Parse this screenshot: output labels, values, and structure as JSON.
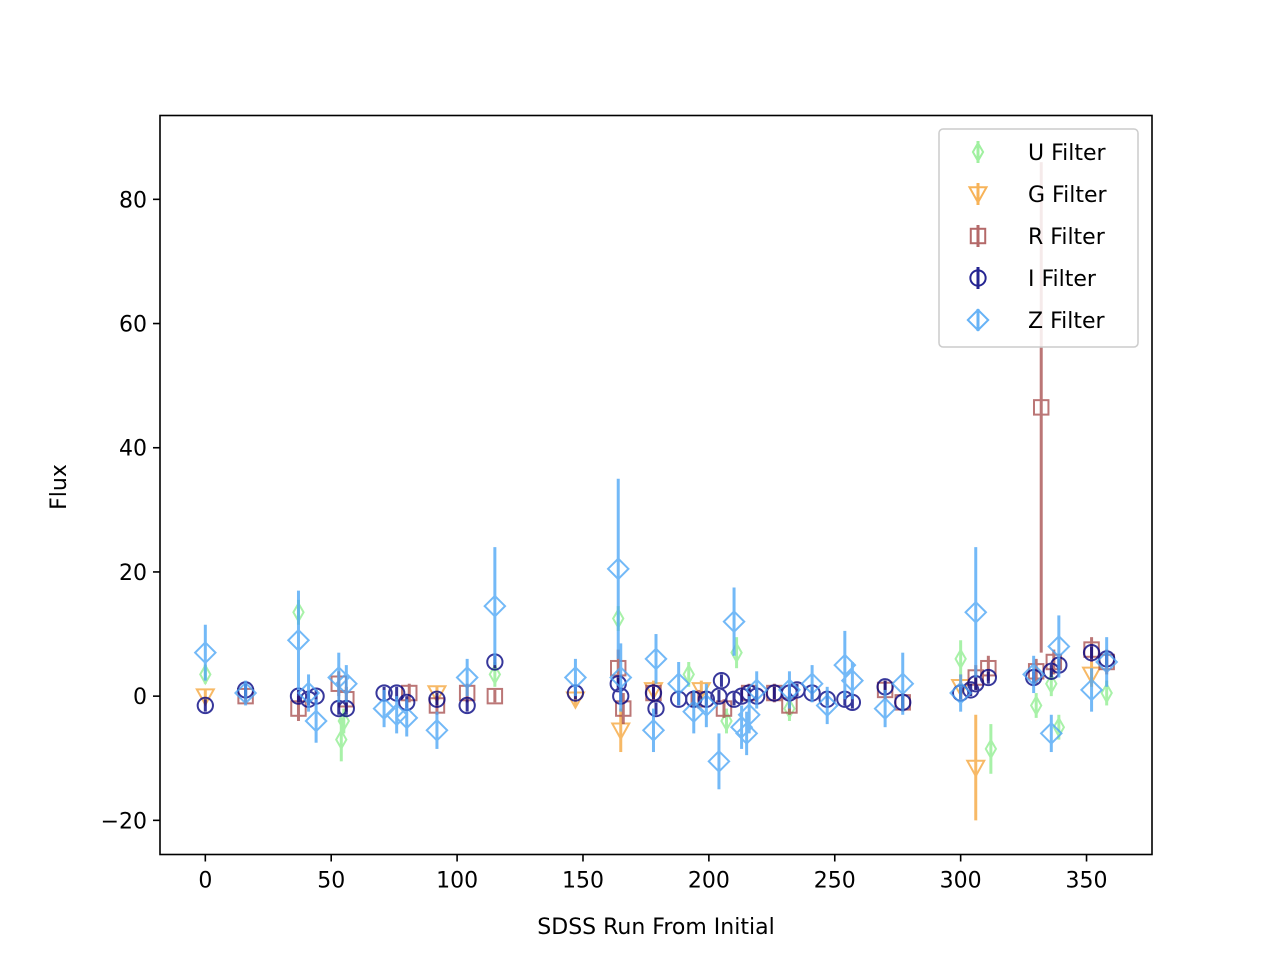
{
  "chart_data": {
    "type": "scatter",
    "title": "",
    "xlabel": "SDSS Run From Initial",
    "ylabel": "Flux",
    "xlim": [
      -18,
      376
    ],
    "ylim": [
      -25.5,
      93.5
    ],
    "xticks": [
      0,
      50,
      100,
      150,
      200,
      250,
      300,
      350
    ],
    "yticks": [
      -20,
      0,
      20,
      40,
      60,
      80
    ],
    "grid": false,
    "legend_position": "top-right",
    "series": [
      {
        "name": "U Filter",
        "marker": "thin-diamond",
        "color": "#90ee90",
        "points": [
          {
            "x": 0,
            "y": 3.5,
            "err": 1.5
          },
          {
            "x": 37,
            "y": 13.5,
            "err": 2.0
          },
          {
            "x": 54,
            "y": -7.0,
            "err": 3.5
          },
          {
            "x": 55,
            "y": -4.0,
            "err": 2.0
          },
          {
            "x": 115,
            "y": 3.5,
            "err": 2.0
          },
          {
            "x": 164,
            "y": 12.5,
            "err": 2.0
          },
          {
            "x": 192,
            "y": 3.5,
            "err": 2.0
          },
          {
            "x": 207,
            "y": -4.0,
            "err": 2.0
          },
          {
            "x": 211,
            "y": 7.0,
            "err": 2.5
          },
          {
            "x": 232,
            "y": -2.0,
            "err": 2.0
          },
          {
            "x": 300,
            "y": 6.0,
            "err": 3.0
          },
          {
            "x": 312,
            "y": -8.5,
            "err": 4.0
          },
          {
            "x": 330,
            "y": -1.5,
            "err": 2.0
          },
          {
            "x": 336,
            "y": 2.0,
            "err": 2.0
          },
          {
            "x": 339,
            "y": -5.0,
            "err": 2.0
          },
          {
            "x": 358,
            "y": 0.5,
            "err": 2.0
          }
        ]
      },
      {
        "name": "G Filter",
        "marker": "triangle-down",
        "color": "#f6a63c",
        "points": [
          {
            "x": 0,
            "y": 0.0,
            "err": 1.0
          },
          {
            "x": 92,
            "y": 0.5,
            "err": 1.0
          },
          {
            "x": 147,
            "y": -0.5,
            "err": 1.0
          },
          {
            "x": 165,
            "y": -5.5,
            "err": 3.5
          },
          {
            "x": 178,
            "y": 1.0,
            "err": 1.5
          },
          {
            "x": 197,
            "y": 1.0,
            "err": 1.5
          },
          {
            "x": 300,
            "y": 1.5,
            "err": 2.0
          },
          {
            "x": 306,
            "y": -11.5,
            "err": 8.5
          },
          {
            "x": 352,
            "y": 3.5,
            "err": 2.0
          }
        ]
      },
      {
        "name": "R Filter",
        "marker": "square",
        "color": "#a85050",
        "points": [
          {
            "x": 16,
            "y": 0.0,
            "err": 1.0
          },
          {
            "x": 37,
            "y": -2.0,
            "err": 2.0
          },
          {
            "x": 53,
            "y": 2.0,
            "err": 2.0
          },
          {
            "x": 56,
            "y": -0.5,
            "err": 2.0
          },
          {
            "x": 81,
            "y": 0.5,
            "err": 1.5
          },
          {
            "x": 92,
            "y": -1.5,
            "err": 1.5
          },
          {
            "x": 104,
            "y": 0.5,
            "err": 1.5
          },
          {
            "x": 115,
            "y": 0.0,
            "err": 1.0
          },
          {
            "x": 164,
            "y": 4.5,
            "err": 3.0
          },
          {
            "x": 166,
            "y": -2.0,
            "err": 2.5
          },
          {
            "x": 178,
            "y": 0.5,
            "err": 1.5
          },
          {
            "x": 196,
            "y": -0.5,
            "err": 1.5
          },
          {
            "x": 206,
            "y": -2.0,
            "err": 1.5
          },
          {
            "x": 216,
            "y": 0.5,
            "err": 1.5
          },
          {
            "x": 226,
            "y": 0.5,
            "err": 1.5
          },
          {
            "x": 232,
            "y": -1.5,
            "err": 1.5
          },
          {
            "x": 270,
            "y": 1.0,
            "err": 1.5
          },
          {
            "x": 277,
            "y": -1.0,
            "err": 1.5
          },
          {
            "x": 306,
            "y": 3.0,
            "err": 2.0
          },
          {
            "x": 311,
            "y": 4.5,
            "err": 2.0
          },
          {
            "x": 330,
            "y": 4.0,
            "err": 2.0
          },
          {
            "x": 332,
            "y": 46.5,
            "err": 39.5
          },
          {
            "x": 337,
            "y": 5.5,
            "err": 2.0
          },
          {
            "x": 352,
            "y": 7.5,
            "err": 2.0
          },
          {
            "x": 358,
            "y": 5.5,
            "err": 2.0
          }
        ]
      },
      {
        "name": "I Filter",
        "marker": "circle",
        "color": "#000080",
        "points": [
          {
            "x": 0,
            "y": -1.5,
            "err": 1.0
          },
          {
            "x": 16,
            "y": 1.0,
            "err": 1.0
          },
          {
            "x": 37,
            "y": 0.0,
            "err": 1.0
          },
          {
            "x": 41,
            "y": -0.5,
            "err": 1.0
          },
          {
            "x": 44,
            "y": 0.0,
            "err": 1.0
          },
          {
            "x": 53,
            "y": -2.0,
            "err": 1.0
          },
          {
            "x": 56,
            "y": -2.0,
            "err": 1.0
          },
          {
            "x": 71,
            "y": 0.5,
            "err": 1.0
          },
          {
            "x": 76,
            "y": 0.5,
            "err": 1.0
          },
          {
            "x": 80,
            "y": -1.0,
            "err": 1.0
          },
          {
            "x": 92,
            "y": -0.5,
            "err": 1.0
          },
          {
            "x": 104,
            "y": -1.5,
            "err": 1.0
          },
          {
            "x": 115,
            "y": 5.5,
            "err": 1.0
          },
          {
            "x": 147,
            "y": 0.5,
            "err": 1.0
          },
          {
            "x": 164,
            "y": 2.0,
            "err": 1.0
          },
          {
            "x": 165,
            "y": 0.0,
            "err": 1.0
          },
          {
            "x": 178,
            "y": 0.5,
            "err": 1.0
          },
          {
            "x": 179,
            "y": -2.0,
            "err": 1.0
          },
          {
            "x": 188,
            "y": -0.5,
            "err": 1.0
          },
          {
            "x": 194,
            "y": -0.5,
            "err": 1.0
          },
          {
            "x": 199,
            "y": -0.5,
            "err": 1.0
          },
          {
            "x": 204,
            "y": 0.0,
            "err": 1.0
          },
          {
            "x": 205,
            "y": 2.5,
            "err": 1.0
          },
          {
            "x": 210,
            "y": -0.5,
            "err": 1.0
          },
          {
            "x": 213,
            "y": 0.0,
            "err": 1.0
          },
          {
            "x": 216,
            "y": 0.5,
            "err": 1.0
          },
          {
            "x": 219,
            "y": 0.0,
            "err": 1.0
          },
          {
            "x": 226,
            "y": 0.5,
            "err": 1.0
          },
          {
            "x": 232,
            "y": 0.5,
            "err": 1.0
          },
          {
            "x": 235,
            "y": 1.0,
            "err": 1.0
          },
          {
            "x": 241,
            "y": 0.5,
            "err": 1.0
          },
          {
            "x": 247,
            "y": -0.5,
            "err": 1.0
          },
          {
            "x": 254,
            "y": -0.5,
            "err": 1.0
          },
          {
            "x": 257,
            "y": -1.0,
            "err": 1.0
          },
          {
            "x": 270,
            "y": 1.5,
            "err": 1.0
          },
          {
            "x": 277,
            "y": -1.0,
            "err": 1.0
          },
          {
            "x": 300,
            "y": 0.5,
            "err": 1.0
          },
          {
            "x": 304,
            "y": 1.0,
            "err": 1.0
          },
          {
            "x": 306,
            "y": 2.0,
            "err": 1.0
          },
          {
            "x": 311,
            "y": 3.0,
            "err": 1.0
          },
          {
            "x": 329,
            "y": 3.0,
            "err": 1.0
          },
          {
            "x": 336,
            "y": 4.0,
            "err": 1.0
          },
          {
            "x": 339,
            "y": 5.0,
            "err": 1.0
          },
          {
            "x": 352,
            "y": 7.0,
            "err": 1.0
          },
          {
            "x": 358,
            "y": 6.0,
            "err": 1.0
          }
        ]
      },
      {
        "name": "Z Filter",
        "marker": "diamond",
        "color": "#4da6f5",
        "points": [
          {
            "x": 0,
            "y": 7.0,
            "err": 4.5
          },
          {
            "x": 16,
            "y": 0.5,
            "err": 2.0
          },
          {
            "x": 37,
            "y": 9.0,
            "err": 8.0
          },
          {
            "x": 41,
            "y": 0.5,
            "err": 3.0
          },
          {
            "x": 44,
            "y": -4.0,
            "err": 3.5
          },
          {
            "x": 53,
            "y": 3.0,
            "err": 4.0
          },
          {
            "x": 56,
            "y": 2.0,
            "err": 3.0
          },
          {
            "x": 71,
            "y": -2.0,
            "err": 3.0
          },
          {
            "x": 76,
            "y": -3.0,
            "err": 3.0
          },
          {
            "x": 80,
            "y": -3.5,
            "err": 3.0
          },
          {
            "x": 92,
            "y": -5.5,
            "err": 3.0
          },
          {
            "x": 104,
            "y": 3.0,
            "err": 3.0
          },
          {
            "x": 115,
            "y": 14.5,
            "err": 9.5
          },
          {
            "x": 147,
            "y": 3.0,
            "err": 3.0
          },
          {
            "x": 164,
            "y": 20.5,
            "err": 14.5
          },
          {
            "x": 165,
            "y": 3.0,
            "err": 5.5
          },
          {
            "x": 178,
            "y": -5.5,
            "err": 3.5
          },
          {
            "x": 179,
            "y": 6.0,
            "err": 4.0
          },
          {
            "x": 188,
            "y": 2.0,
            "err": 3.5
          },
          {
            "x": 194,
            "y": -2.5,
            "err": 3.5
          },
          {
            "x": 199,
            "y": -1.5,
            "err": 3.5
          },
          {
            "x": 204,
            "y": -10.5,
            "err": 4.5
          },
          {
            "x": 210,
            "y": 12.0,
            "err": 5.5
          },
          {
            "x": 213,
            "y": -5.0,
            "err": 3.5
          },
          {
            "x": 215,
            "y": -6.0,
            "err": 3.5
          },
          {
            "x": 216,
            "y": -3.0,
            "err": 3.0
          },
          {
            "x": 219,
            "y": 1.0,
            "err": 3.0
          },
          {
            "x": 232,
            "y": 1.0,
            "err": 3.0
          },
          {
            "x": 241,
            "y": 2.0,
            "err": 3.0
          },
          {
            "x": 247,
            "y": -1.5,
            "err": 3.0
          },
          {
            "x": 254,
            "y": 5.0,
            "err": 5.5
          },
          {
            "x": 257,
            "y": 2.5,
            "err": 3.0
          },
          {
            "x": 270,
            "y": -2.0,
            "err": 3.0
          },
          {
            "x": 277,
            "y": 2.0,
            "err": 5.0
          },
          {
            "x": 300,
            "y": 0.5,
            "err": 3.0
          },
          {
            "x": 306,
            "y": 13.5,
            "err": 10.5
          },
          {
            "x": 329,
            "y": 3.5,
            "err": 3.0
          },
          {
            "x": 336,
            "y": -6.0,
            "err": 3.0
          },
          {
            "x": 339,
            "y": 8.0,
            "err": 5.0
          },
          {
            "x": 352,
            "y": 1.0,
            "err": 3.5
          },
          {
            "x": 358,
            "y": 5.5,
            "err": 4.0
          }
        ]
      }
    ]
  }
}
